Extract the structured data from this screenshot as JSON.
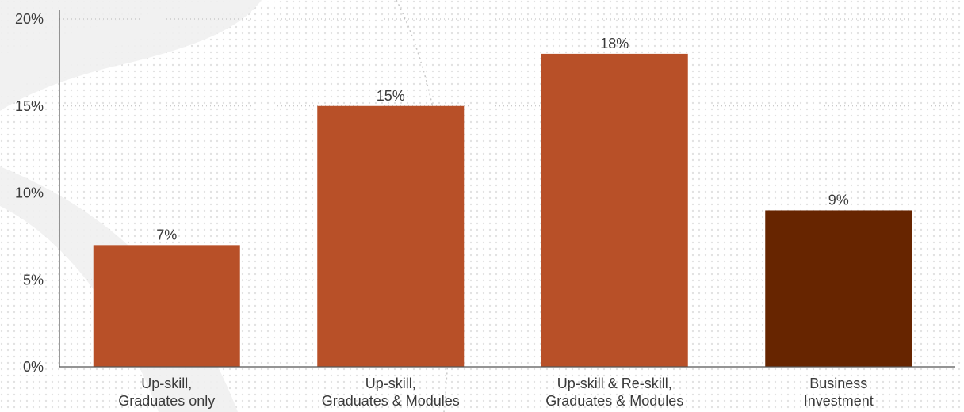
{
  "chart_data": {
    "type": "bar",
    "categories": [
      [
        "Up-skill,",
        "Graduates only"
      ],
      [
        "Up-skill,",
        "Graduates & Modules"
      ],
      [
        "Up-skill & Re-skill,",
        "Graduates & Modules"
      ],
      [
        "Business",
        "Investment"
      ]
    ],
    "values": [
      7,
      15,
      18,
      9
    ],
    "data_labels": [
      "7%",
      "15%",
      "18%",
      "9%"
    ],
    "bar_colors": [
      "#b85028",
      "#b85028",
      "#b85028",
      "#672500"
    ],
    "ylim": [
      0,
      20
    ],
    "yticks": [
      0,
      5,
      10,
      15,
      20
    ],
    "ytick_labels": [
      "0%",
      "5%",
      "10%",
      "15%",
      "20%"
    ],
    "grid": true,
    "title": "",
    "xlabel": "",
    "ylabel": ""
  },
  "colors": {
    "axis": "#555555",
    "grid": "#b8b8b8",
    "text": "#3a3a3a",
    "background_pattern": "#e6e6e6"
  }
}
